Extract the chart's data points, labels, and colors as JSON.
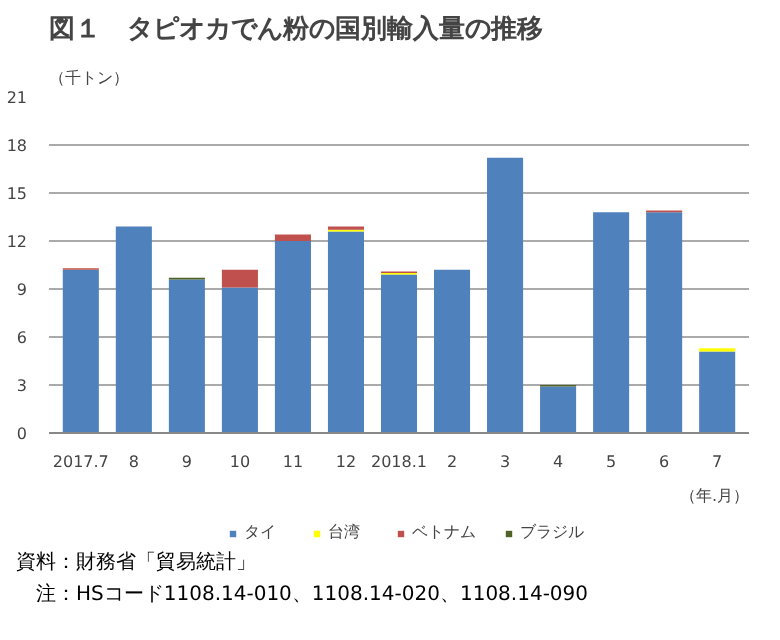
{
  "chart_data": {
    "type": "bar",
    "title": "図１　タピオカでん粉の国別輸入量の推移",
    "ylabel": "（千トン）",
    "xlabel": "（年.月）",
    "categories": [
      "2017.7",
      "8",
      "9",
      "10",
      "11",
      "12",
      "2018.1",
      "2",
      "3",
      "4",
      "5",
      "6",
      "7"
    ],
    "stacked": true,
    "series": [
      {
        "name": "タイ",
        "color": "#4f81bd",
        "values": [
          10.2,
          12.9,
          9.6,
          9.1,
          12.0,
          12.6,
          9.9,
          10.2,
          17.2,
          2.9,
          13.8,
          13.8,
          5.1
        ]
      },
      {
        "name": "台湾",
        "color": "#ffff00",
        "values": [
          0,
          0,
          0,
          0,
          0,
          0.1,
          0.1,
          0,
          0,
          0,
          0,
          0,
          0.2
        ]
      },
      {
        "name": "ベトナム",
        "color": "#c0504d",
        "values": [
          0.1,
          0,
          0,
          1.1,
          0.4,
          0.2,
          0.1,
          0,
          0,
          0,
          0,
          0.1,
          0
        ]
      },
      {
        "name": "ブラジル",
        "color": "#4f6228",
        "values": [
          0,
          0,
          0.1,
          0,
          0,
          0,
          0,
          0,
          0,
          0.1,
          0,
          0,
          0
        ]
      }
    ],
    "ylim": [
      0,
      21
    ],
    "yticks": [
      0,
      3,
      6,
      9,
      12,
      15,
      18,
      21
    ],
    "grid": "y",
    "legend": "bottom",
    "annotations": [
      "資料：財務省「貿易統計」",
      "　注：HSコード1108.14-010、1108.14-020、1108.14-090"
    ]
  }
}
